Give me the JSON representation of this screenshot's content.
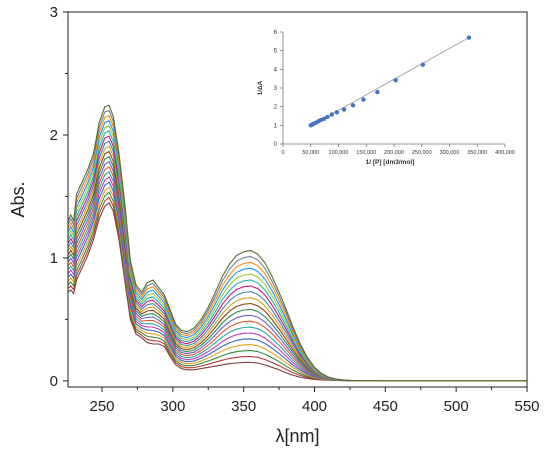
{
  "chart_data": [
    {
      "type": "line",
      "title": "",
      "xlabel": "λ[nm]",
      "ylabel": "Abs.",
      "xlim": [
        226,
        550
      ],
      "ylim": [
        -0.05,
        3.0
      ],
      "xticks": [
        250,
        300,
        350,
        400,
        450,
        500,
        550
      ],
      "yticks": [
        0,
        1,
        2,
        3
      ],
      "xtick_labels": [
        "250",
        "300",
        "350",
        "400",
        "450",
        "500",
        "550"
      ],
      "ytick_labels": [
        "0",
        "1",
        "2",
        "3"
      ],
      "grid": false,
      "legend": "none",
      "series_count": 20,
      "base_profile": {
        "x": [
          226,
          228,
          230,
          232,
          236,
          240,
          244,
          248,
          252,
          255,
          258,
          262,
          266,
          270,
          274,
          278,
          282,
          286,
          290,
          294,
          298,
          302,
          306,
          310,
          315,
          320,
          325,
          330,
          335,
          340,
          345,
          350,
          355,
          360,
          365,
          370,
          375,
          380,
          385,
          390,
          395,
          400,
          405,
          410,
          415,
          420,
          425,
          430,
          440,
          450,
          500,
          550
        ],
        "y_first": [
          0.72,
          0.74,
          0.71,
          0.82,
          0.92,
          1.02,
          1.15,
          1.32,
          1.42,
          1.45,
          1.38,
          1.15,
          0.82,
          0.5,
          0.38,
          0.35,
          0.31,
          0.3,
          0.3,
          0.28,
          0.2,
          0.13,
          0.1,
          0.09,
          0.09,
          0.1,
          0.11,
          0.12,
          0.13,
          0.14,
          0.145,
          0.15,
          0.15,
          0.145,
          0.13,
          0.11,
          0.09,
          0.065,
          0.045,
          0.03,
          0.02,
          0.012,
          0.008,
          0.005,
          0.003,
          0.002,
          0.001,
          0.0,
          0.0,
          0.0,
          0.0,
          0.0
        ],
        "y_last": [
          1.3,
          1.35,
          1.3,
          1.52,
          1.62,
          1.72,
          1.85,
          2.1,
          2.23,
          2.24,
          2.15,
          1.85,
          1.45,
          0.98,
          0.78,
          0.72,
          0.8,
          0.82,
          0.76,
          0.7,
          0.58,
          0.46,
          0.41,
          0.4,
          0.43,
          0.5,
          0.6,
          0.72,
          0.85,
          0.95,
          1.02,
          1.05,
          1.06,
          1.03,
          0.96,
          0.85,
          0.72,
          0.58,
          0.43,
          0.3,
          0.19,
          0.11,
          0.06,
          0.03,
          0.015,
          0.008,
          0.004,
          0.002,
          0.001,
          0.0,
          0.0,
          0.0
        ]
      },
      "series_colors": [
        "#7f3f3f",
        "#b23b3b",
        "#3a8a3a",
        "#e3a11a",
        "#3a66c4",
        "#c03fc0",
        "#23a6a0",
        "#e05a2a",
        "#6a5acd",
        "#2e8b57",
        "#8b4513",
        "#d4a017",
        "#4682b4",
        "#c71585",
        "#20b2aa",
        "#9acd32",
        "#1e90ff",
        "#ff8c00",
        "#708090",
        "#556b2f"
      ]
    },
    {
      "type": "scatter",
      "title": "",
      "xlabel": "1/ [P] [dm3/mol]",
      "ylabel": "1/ΔA",
      "xlim": [
        0,
        400000
      ],
      "ylim": [
        0,
        6
      ],
      "xticks": [
        0,
        50000,
        100000,
        150000,
        200000,
        250000,
        300000,
        350000,
        400000
      ],
      "yticks": [
        0,
        1,
        2,
        3,
        4,
        5,
        6
      ],
      "xtick_labels": [
        "0",
        "50,000",
        "100,000",
        "150,000",
        "200,000",
        "250,000",
        "300,000",
        "350,000",
        "400,000"
      ],
      "ytick_labels": [
        "0",
        "1",
        "2",
        "3",
        "4",
        "5",
        "6"
      ],
      "points": [
        {
          "x": 50000,
          "y": 1.0
        },
        {
          "x": 53000,
          "y": 1.05
        },
        {
          "x": 56000,
          "y": 1.1
        },
        {
          "x": 60000,
          "y": 1.15
        },
        {
          "x": 64000,
          "y": 1.22
        },
        {
          "x": 68000,
          "y": 1.28
        },
        {
          "x": 74000,
          "y": 1.35
        },
        {
          "x": 80000,
          "y": 1.45
        },
        {
          "x": 88000,
          "y": 1.58
        },
        {
          "x": 97000,
          "y": 1.7
        },
        {
          "x": 110000,
          "y": 1.85
        },
        {
          "x": 126000,
          "y": 2.07
        },
        {
          "x": 145000,
          "y": 2.38
        },
        {
          "x": 170000,
          "y": 2.78
        },
        {
          "x": 203000,
          "y": 3.42
        },
        {
          "x": 252000,
          "y": 4.25
        },
        {
          "x": 335000,
          "y": 5.7
        }
      ],
      "fit_line": {
        "x": [
          50000,
          335000
        ],
        "y": [
          0.98,
          5.7
        ]
      },
      "marker_color": "#4472c4",
      "line_color": "#a0a0a0"
    }
  ]
}
